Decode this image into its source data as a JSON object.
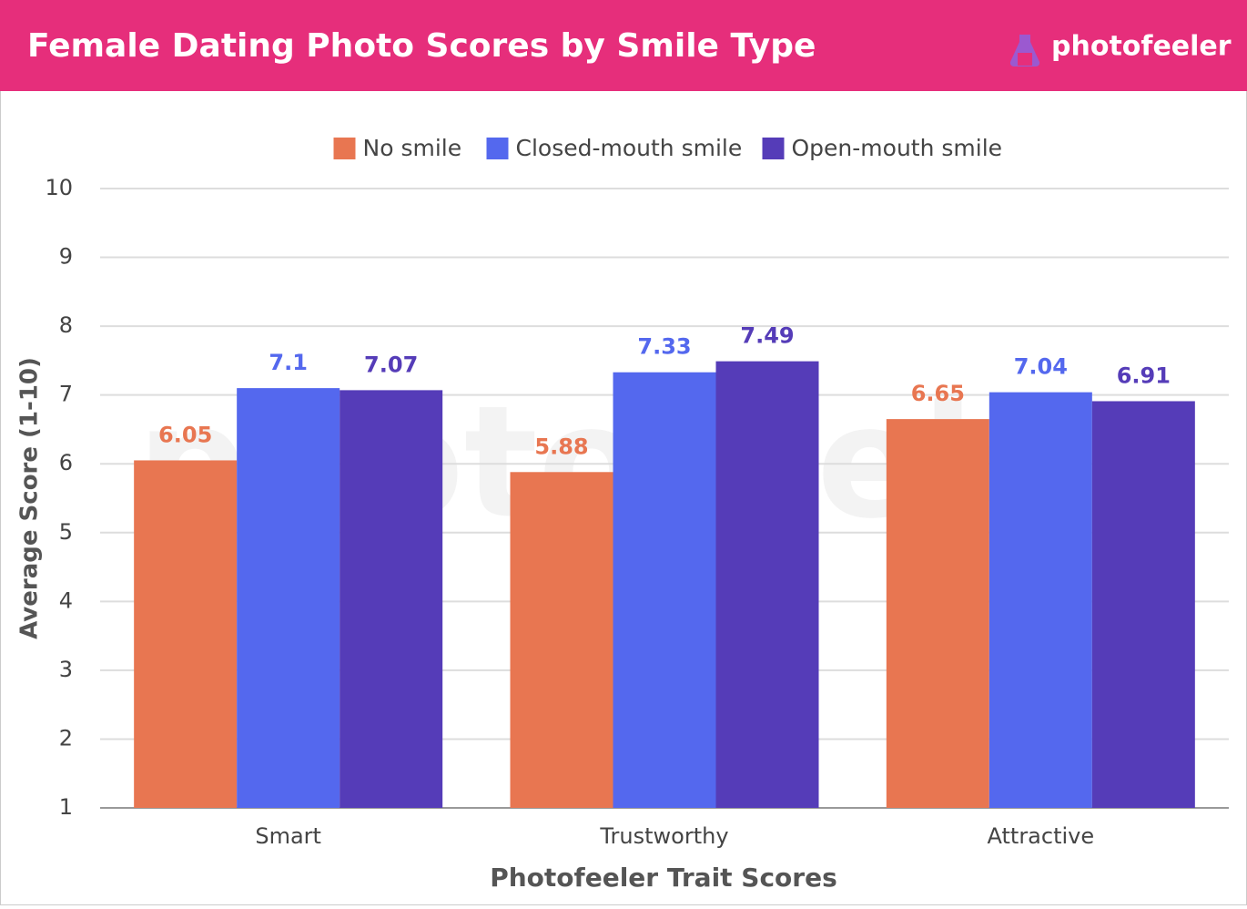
{
  "chart_data": {
    "type": "bar",
    "title": "Female Dating Photo Scores by Smile Type",
    "brand": "photofeeler",
    "x_label": "Photofeeler Trait Scores",
    "y_label": "Average Score (1-10)",
    "categories": [
      "Smart",
      "Trustworthy",
      "Attractive"
    ],
    "series": [
      {
        "name": "No smile",
        "color": "#e87651",
        "values": [
          6.05,
          5.88,
          6.65
        ]
      },
      {
        "name": "Closed-mouth smile",
        "color": "#5468ee",
        "values": [
          7.1,
          7.33,
          7.04
        ]
      },
      {
        "name": "Open-mouth smile",
        "color": "#553cb8",
        "values": [
          7.07,
          7.49,
          6.91
        ]
      }
    ],
    "ylim": [
      1,
      10
    ],
    "yticks": [
      1,
      2,
      3,
      4,
      5,
      6,
      7,
      8,
      9,
      10
    ],
    "grid": true,
    "legend": "top",
    "header_color": "#e62e7b"
  }
}
